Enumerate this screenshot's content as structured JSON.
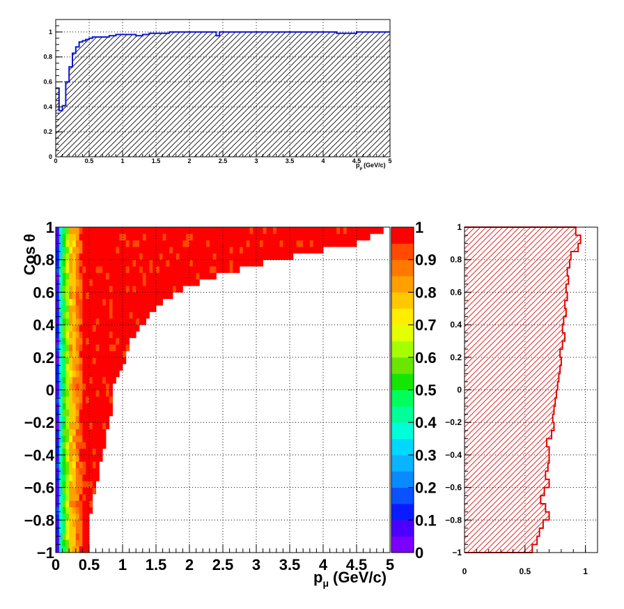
{
  "colors": {
    "top_hist": "#0a14d2",
    "right_hist": "#e00000",
    "palette": [
      "#7a00ff",
      "#4c00ff",
      "#0a1cff",
      "#0a52ff",
      "#0a8aff",
      "#0ab4ff",
      "#00d8ff",
      "#00ffd8",
      "#00ff9a",
      "#00ff5a",
      "#14e600",
      "#6ae600",
      "#a6ff00",
      "#e4ff00",
      "#ffee00",
      "#ffc800",
      "#ffa000",
      "#ff7800",
      "#ff4a00",
      "#ff0000"
    ]
  },
  "chart_data": [
    {
      "id": "top",
      "type": "step",
      "title": "",
      "xlabel": "p",
      "xlabel_sub": "μ",
      "xlabel_unit": "(GeV/c)",
      "ylabel": "",
      "xlim": [
        0,
        5
      ],
      "ylim": [
        0,
        1.1
      ],
      "grid": true,
      "hatched": true,
      "x_ticks": [
        "0",
        "0.5",
        "1",
        "1.5",
        "2",
        "2.5",
        "3",
        "3.5",
        "4",
        "4.5",
        "5"
      ],
      "y_ticks": [
        "0",
        "0.2",
        "0.4",
        "0.6",
        "0.8",
        "1"
      ],
      "series": [
        {
          "x": [
            0,
            0.05,
            0.1,
            0.15,
            0.2,
            0.25,
            0.3,
            0.35,
            0.4,
            0.45,
            0.5,
            0.55,
            0.6,
            0.7,
            0.8,
            0.9,
            1.0,
            1.2,
            1.3,
            1.4,
            1.5,
            1.6,
            1.7,
            1.9,
            2.0,
            2.2,
            2.3,
            2.4,
            2.45,
            2.5,
            2.8,
            3.0,
            3.3,
            3.6,
            3.9,
            4.2,
            4.5,
            4.8,
            5.0
          ],
          "y": [
            0.55,
            0.37,
            0.41,
            0.6,
            0.72,
            0.83,
            0.88,
            0.92,
            0.93,
            0.94,
            0.95,
            0.96,
            0.96,
            0.96,
            0.97,
            0.98,
            0.98,
            0.97,
            0.98,
            0.99,
            0.99,
            0.99,
            1.0,
            1.0,
            1.0,
            1.0,
            1.0,
            0.97,
            1.0,
            1.0,
            1.0,
            1.0,
            1.0,
            1.0,
            1.0,
            0.99,
            1.0,
            1.0,
            1.0
          ]
        }
      ]
    },
    {
      "id": "main",
      "type": "heatmap",
      "title": "",
      "xlabel": "p",
      "xlabel_sub": "μ",
      "xlabel_unit": "(GeV/c)",
      "ylabel": "Cos θ",
      "xlim": [
        0,
        5
      ],
      "ylim": [
        -1,
        1
      ],
      "zlim": [
        0,
        1
      ],
      "grid": true,
      "x_ticks": [
        "0",
        "0.5",
        "1",
        "1.5",
        "2",
        "2.5",
        "3",
        "3.5",
        "4",
        "4.5",
        "5"
      ],
      "y_ticks": [
        "−1",
        "−0.8",
        "−0.6",
        "−0.4",
        "−0.2",
        "0",
        "0.2",
        "0.4",
        "0.6",
        "0.8",
        "1"
      ],
      "z_ticks": [
        "0",
        "0.1",
        "0.2",
        "0.3",
        "0.4",
        "0.5",
        "0.6",
        "0.7",
        "0.8",
        "0.9",
        "1"
      ],
      "acceptance_boundary": {
        "costheta": [
          -1.0,
          -0.9,
          -0.8,
          -0.7,
          -0.6,
          -0.5,
          -0.4,
          -0.3,
          -0.2,
          -0.1,
          0.0,
          0.1,
          0.2,
          0.3,
          0.4,
          0.5,
          0.6,
          0.7,
          0.8,
          0.9,
          1.0
        ],
        "p_max": [
          0.5,
          0.5,
          0.5,
          0.55,
          0.6,
          0.65,
          0.7,
          0.75,
          0.8,
          0.85,
          0.85,
          0.95,
          1.05,
          1.1,
          1.3,
          1.5,
          1.8,
          2.4,
          3.3,
          4.5,
          5.0
        ]
      }
    },
    {
      "id": "right",
      "type": "step",
      "orientation": "horizontal",
      "title": "",
      "xlabel": "",
      "ylabel": "",
      "xlim": [
        0,
        1.1
      ],
      "ylim": [
        -1,
        1
      ],
      "grid": true,
      "hatched": true,
      "x_ticks": [
        "0",
        "0.5",
        "1"
      ],
      "y_ticks": [
        "−1",
        "−0.8",
        "−0.6",
        "−0.4",
        "−0.2",
        "0",
        "0.2",
        "0.4",
        "0.6",
        "0.8",
        "1"
      ],
      "series": [
        {
          "y": [
            -1.0,
            -0.95,
            -0.9,
            -0.85,
            -0.8,
            -0.75,
            -0.7,
            -0.65,
            -0.6,
            -0.55,
            -0.5,
            -0.45,
            -0.4,
            -0.35,
            -0.3,
            -0.25,
            -0.2,
            -0.15,
            -0.1,
            -0.05,
            0.0,
            0.05,
            0.1,
            0.15,
            0.2,
            0.25,
            0.3,
            0.35,
            0.4,
            0.45,
            0.5,
            0.55,
            0.6,
            0.65,
            0.7,
            0.75,
            0.8,
            0.85,
            0.9,
            0.95
          ],
          "x": [
            0.56,
            0.6,
            0.62,
            0.65,
            0.7,
            0.67,
            0.63,
            0.66,
            0.7,
            0.67,
            0.69,
            0.7,
            0.7,
            0.68,
            0.72,
            0.74,
            0.73,
            0.74,
            0.75,
            0.76,
            0.77,
            0.78,
            0.79,
            0.8,
            0.79,
            0.81,
            0.83,
            0.81,
            0.82,
            0.84,
            0.83,
            0.85,
            0.84,
            0.86,
            0.85,
            0.87,
            0.88,
            0.94,
            0.96,
            0.92
          ]
        }
      ]
    }
  ]
}
